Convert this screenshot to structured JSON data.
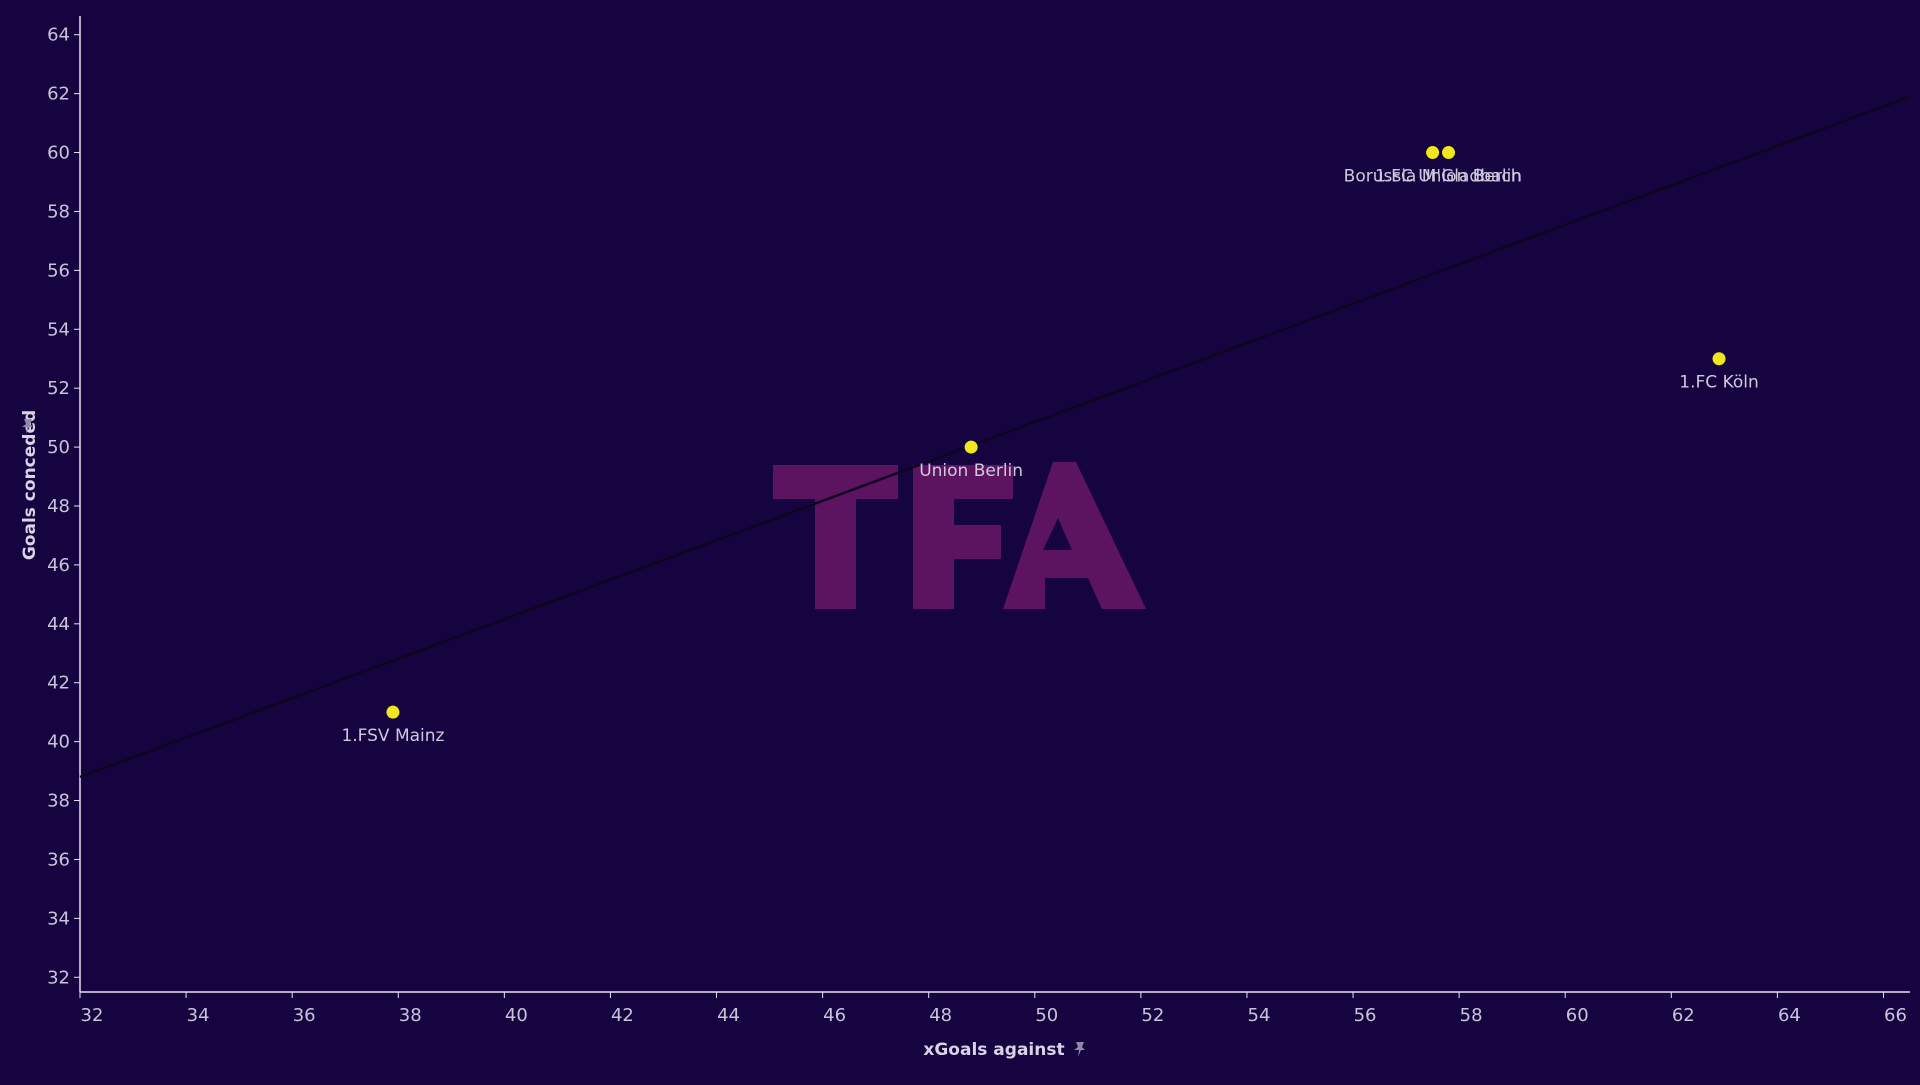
{
  "colors": {
    "background": "#150440",
    "axis": "#e6e2f0",
    "tick_label": "#c9c3da",
    "point": "#f0e81c",
    "trend_line": "#0d0522",
    "watermark": "#5c1460"
  },
  "watermark_text": "TFA",
  "icons": {
    "axis_pin": "pin-icon"
  },
  "chart_data": {
    "type": "scatter",
    "title": "",
    "xlabel": "xGoals against",
    "ylabel": "Goals conceded",
    "xlim": [
      32,
      66.5
    ],
    "ylim": [
      31.5,
      64.5
    ],
    "x_ticks": [
      32,
      34,
      36,
      38,
      40,
      42,
      44,
      46,
      48,
      50,
      52,
      54,
      56,
      58,
      60,
      62,
      64,
      66
    ],
    "y_ticks": [
      32,
      34,
      36,
      38,
      40,
      42,
      44,
      46,
      48,
      50,
      52,
      54,
      56,
      58,
      60,
      62,
      64
    ],
    "grid": false,
    "points": [
      {
        "label": "1.FSV Mainz",
        "x": 37.9,
        "y": 41
      },
      {
        "label": "Union Berlin",
        "x": 48.8,
        "y": 50
      },
      {
        "label": "Borussia M'Gladbach",
        "x": 57.5,
        "y": 60
      },
      {
        "label": "1.FC Union Berlin",
        "x": 57.8,
        "y": 60
      },
      {
        "label": "1.FC Köln",
        "x": 62.9,
        "y": 53
      }
    ],
    "trend_line": {
      "x": [
        32,
        66.5
      ],
      "y": [
        38.8,
        61.9
      ]
    }
  }
}
